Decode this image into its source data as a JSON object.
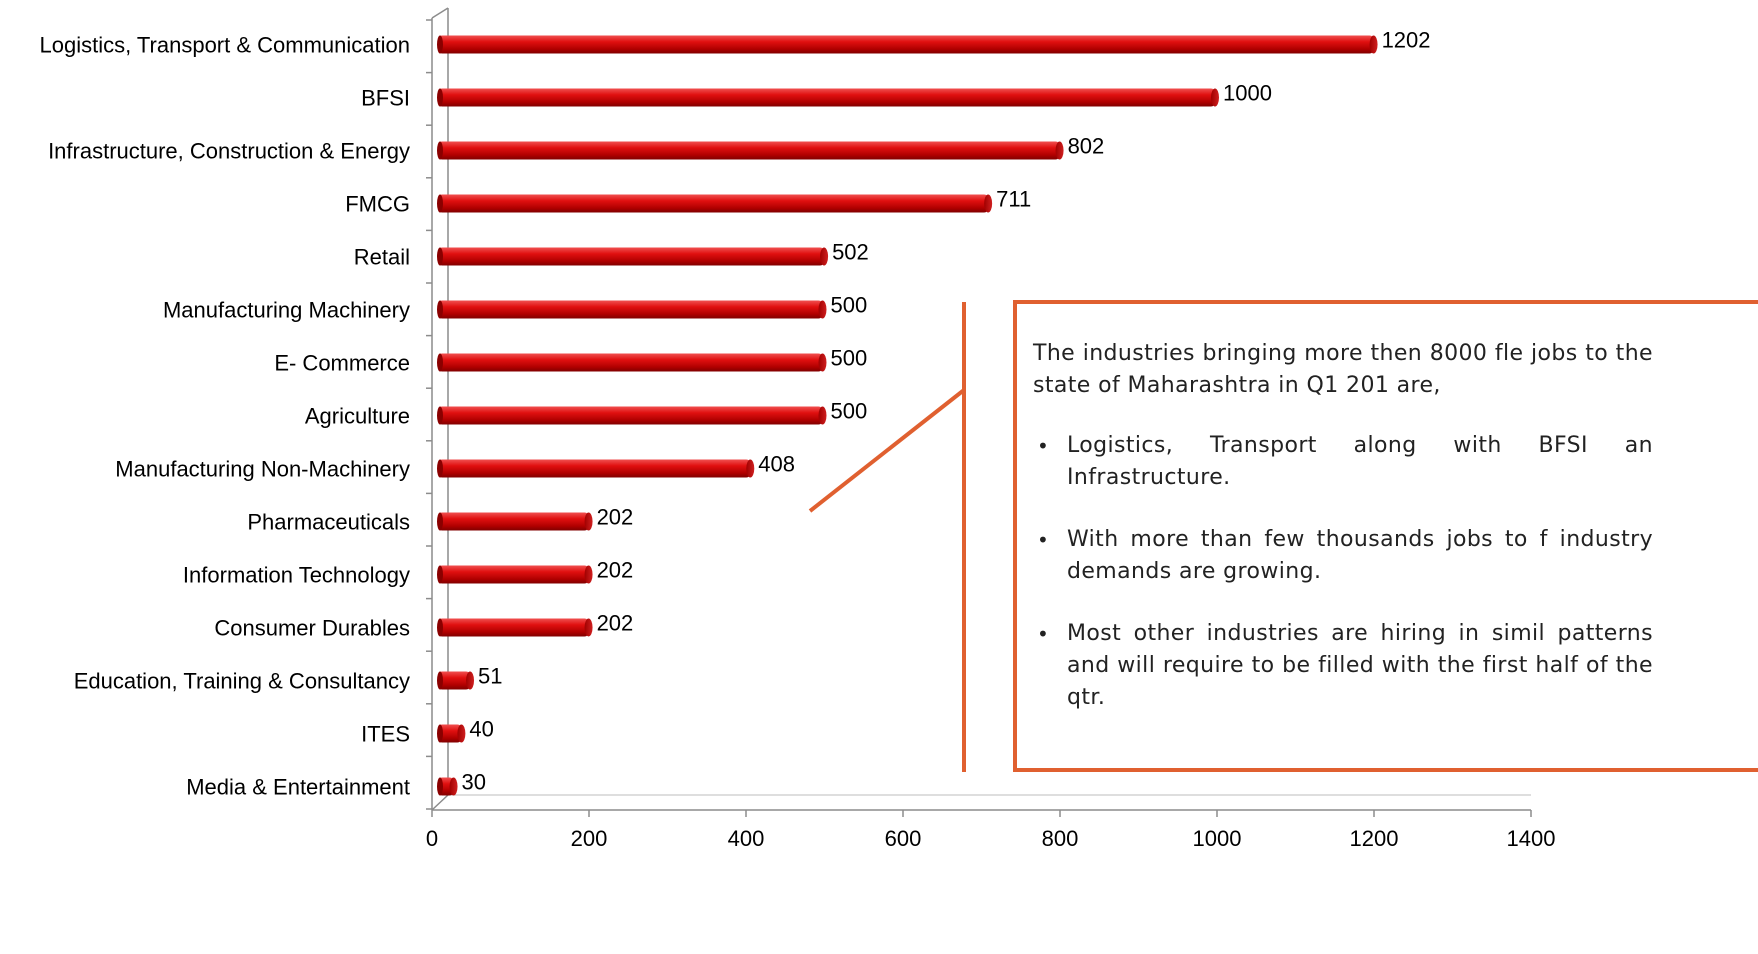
{
  "chart_data": {
    "type": "bar",
    "orientation": "horizontal",
    "categories": [
      "Logistics, Transport & Communication",
      "BFSI",
      "Infrastructure, Construction & Energy",
      "FMCG",
      "Retail",
      "Manufacturing Machinery",
      "E- Commerce",
      "Agriculture",
      "Manufacturing Non-Machinery",
      "Pharmaceuticals",
      "Information Technology",
      "Consumer Durables",
      "Education, Training & Consultancy",
      "ITES",
      "Media & Entertainment"
    ],
    "values": [
      1202,
      1000,
      802,
      711,
      502,
      500,
      500,
      500,
      408,
      202,
      202,
      202,
      51,
      40,
      30
    ],
    "xlim": [
      0,
      1400
    ],
    "xticks": [
      0,
      200,
      400,
      600,
      800,
      1000,
      1200,
      1400
    ],
    "bar_color": "#c00000",
    "grid": false,
    "legend": "none"
  },
  "callout": {
    "intro": "The industries bringing more then 8000 fle jobs to the state of Maharashtra in Q1 201 are,",
    "bullets": [
      "Logistics, Transport along with BFSI an Infrastructure.",
      "With more than few thousands jobs to f industry demands are growing.",
      "Most other industries are hiring in simil patterns and will require to be filled with the first half of the qtr."
    ],
    "border_color": "#e06030"
  }
}
